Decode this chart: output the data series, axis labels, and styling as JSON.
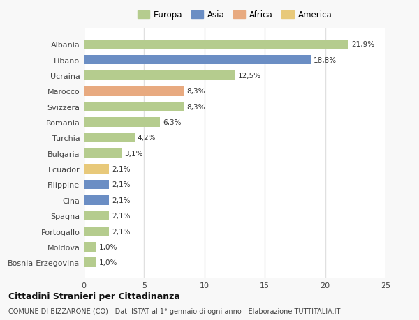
{
  "categories": [
    "Bosnia-Erzegovina",
    "Moldova",
    "Portogallo",
    "Spagna",
    "Cina",
    "Filippine",
    "Ecuador",
    "Bulgaria",
    "Turchia",
    "Romania",
    "Svizzera",
    "Marocco",
    "Ucraina",
    "Libano",
    "Albania"
  ],
  "values": [
    1.0,
    1.0,
    2.1,
    2.1,
    2.1,
    2.1,
    2.1,
    3.1,
    4.2,
    6.3,
    8.3,
    8.3,
    12.5,
    18.8,
    21.9
  ],
  "colors": [
    "#b5cc8e",
    "#b5cc8e",
    "#b5cc8e",
    "#b5cc8e",
    "#6b8ec4",
    "#6b8ec4",
    "#e8c97a",
    "#b5cc8e",
    "#b5cc8e",
    "#b5cc8e",
    "#b5cc8e",
    "#e8aa80",
    "#b5cc8e",
    "#6b8ec4",
    "#b5cc8e"
  ],
  "labels": [
    "1,0%",
    "1,0%",
    "2,1%",
    "2,1%",
    "2,1%",
    "2,1%",
    "2,1%",
    "3,1%",
    "4,2%",
    "6,3%",
    "8,3%",
    "8,3%",
    "12,5%",
    "18,8%",
    "21,9%"
  ],
  "legend_labels": [
    "Europa",
    "Asia",
    "Africa",
    "America"
  ],
  "legend_colors": [
    "#b5cc8e",
    "#6b8ec4",
    "#e8aa80",
    "#e8c97a"
  ],
  "xlim": [
    0,
    25
  ],
  "xticks": [
    0,
    5,
    10,
    15,
    20,
    25
  ],
  "title": "Cittadini Stranieri per Cittadinanza",
  "subtitle": "COMUNE DI BIZZARONE (CO) - Dati ISTAT al 1° gennaio di ogni anno - Elaborazione TUTTITALIA.IT",
  "bg_color": "#f8f8f8",
  "plot_bg": "#ffffff",
  "grid_color": "#e0e0e0",
  "bar_height": 0.6
}
